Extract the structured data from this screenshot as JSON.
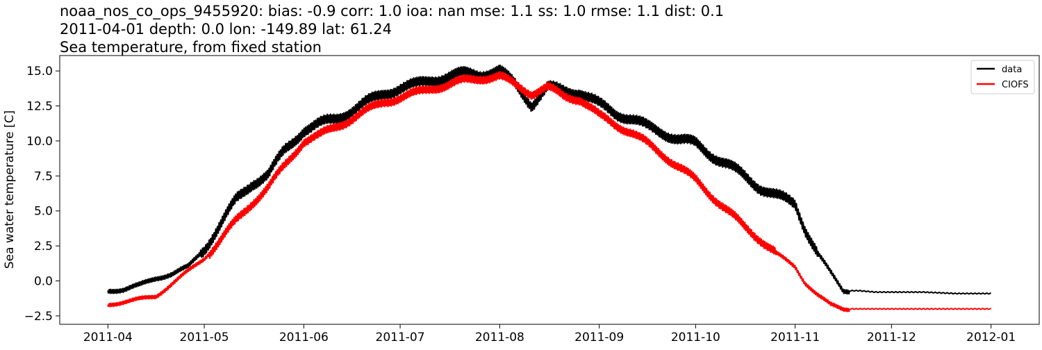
{
  "chart_data": {
    "type": "line",
    "title": [
      "noaa_nos_co_ops_9455920: bias: -0.9  corr: 1.0  ioa: nan  mse: 1.1  ss: 1.0  rmse: 1.1  dist: 0.1",
      "2011-04-01 depth: 0.0 lon: -149.89 lat: 61.24",
      "Sea temperature, from fixed station"
    ],
    "xlabel": "",
    "ylabel": "Sea water temperature [C]",
    "x_type": "date",
    "xlim": [
      "2011-03-17",
      "2012-01-16"
    ],
    "ylim": [
      -3.1,
      16.1
    ],
    "x_ticks": [
      "2011-04",
      "2011-05",
      "2011-06",
      "2011-07",
      "2011-08",
      "2011-09",
      "2011-10",
      "2011-11",
      "2011-12",
      "2012-01"
    ],
    "x_tick_dates": [
      "2011-04-01",
      "2011-05-01",
      "2011-06-01",
      "2011-07-01",
      "2011-08-01",
      "2011-09-01",
      "2011-10-01",
      "2011-11-01",
      "2011-12-01",
      "2012-01-01"
    ],
    "y_ticks": [
      "−2.5",
      "0.0",
      "2.5",
      "5.0",
      "7.5",
      "10.0",
      "12.5",
      "15.0"
    ],
    "y_tick_values": [
      -2.5,
      0.0,
      2.5,
      5.0,
      7.5,
      10.0,
      12.5,
      15.0
    ],
    "grid": false,
    "legend_position": "top-right",
    "series": [
      {
        "name": "data",
        "color": "#000000",
        "x": [
          "2011-04-01",
          "2011-04-06",
          "2011-04-11",
          "2011-04-16",
          "2011-04-21",
          "2011-04-26",
          "2011-05-01",
          "2011-05-06",
          "2011-05-11",
          "2011-05-16",
          "2011-05-21",
          "2011-05-26",
          "2011-06-01",
          "2011-06-06",
          "2011-06-11",
          "2011-06-16",
          "2011-06-21",
          "2011-06-26",
          "2011-07-01",
          "2011-07-06",
          "2011-07-11",
          "2011-07-16",
          "2011-07-21",
          "2011-07-26",
          "2011-08-01",
          "2011-08-06",
          "2011-08-11",
          "2011-08-16",
          "2011-08-21",
          "2011-08-26",
          "2011-09-01",
          "2011-09-06",
          "2011-09-11",
          "2011-09-16",
          "2011-09-21",
          "2011-09-26",
          "2011-10-01",
          "2011-10-06",
          "2011-10-11",
          "2011-10-16",
          "2011-10-21",
          "2011-10-26",
          "2011-11-01",
          "2011-11-04",
          "2011-11-08",
          "2011-11-12",
          "2011-11-16",
          "2011-11-21",
          "2011-11-26",
          "2011-12-01",
          "2011-12-11",
          "2011-12-21",
          "2012-01-01"
        ],
        "y": [
          -0.7,
          -0.6,
          -0.3,
          0.2,
          0.5,
          1.0,
          2.3,
          4.0,
          5.8,
          7.0,
          7.6,
          9.3,
          10.8,
          11.2,
          11.6,
          12.2,
          12.8,
          13.4,
          13.8,
          14.0,
          14.4,
          14.6,
          14.8,
          14.8,
          15.0,
          14.0,
          12.6,
          13.8,
          13.6,
          13.5,
          12.6,
          12.0,
          11.6,
          11.0,
          10.6,
          10.1,
          9.8,
          9.0,
          8.3,
          7.5,
          6.7,
          6.1,
          5.5,
          3.8,
          2.0,
          0.6,
          -0.7,
          -0.7,
          -0.8,
          -0.8,
          -0.8,
          -0.9,
          -0.9
        ]
      },
      {
        "name": "CIOFS",
        "color": "#ff0000",
        "x": [
          "2011-04-01",
          "2011-04-06",
          "2011-04-11",
          "2011-04-16",
          "2011-04-21",
          "2011-04-26",
          "2011-05-01",
          "2011-05-06",
          "2011-05-11",
          "2011-05-16",
          "2011-05-21",
          "2011-05-26",
          "2011-06-01",
          "2011-06-06",
          "2011-06-11",
          "2011-06-16",
          "2011-06-21",
          "2011-06-26",
          "2011-07-01",
          "2011-07-06",
          "2011-07-11",
          "2011-07-16",
          "2011-07-21",
          "2011-07-26",
          "2011-08-01",
          "2011-08-06",
          "2011-08-11",
          "2011-08-16",
          "2011-08-21",
          "2011-08-26",
          "2011-09-01",
          "2011-09-06",
          "2011-09-11",
          "2011-09-16",
          "2011-09-21",
          "2011-09-26",
          "2011-10-01",
          "2011-10-06",
          "2011-10-11",
          "2011-10-16",
          "2011-10-21",
          "2011-10-26",
          "2011-11-01",
          "2011-11-04",
          "2011-11-08",
          "2011-11-12",
          "2011-11-16",
          "2011-11-21",
          "2011-11-26",
          "2011-12-01",
          "2011-12-11",
          "2011-12-21",
          "2012-01-01"
        ],
        "y": [
          -1.7,
          -1.5,
          -1.3,
          -1.1,
          -0.2,
          0.7,
          1.6,
          2.9,
          4.3,
          5.6,
          6.7,
          8.2,
          10.0,
          10.4,
          11.0,
          11.6,
          12.2,
          12.8,
          13.1,
          13.4,
          13.8,
          14.0,
          14.3,
          14.5,
          14.6,
          14.0,
          13.4,
          13.8,
          13.2,
          13.0,
          11.8,
          11.2,
          10.6,
          9.8,
          9.0,
          8.1,
          7.2,
          6.1,
          5.0,
          3.9,
          3.0,
          2.0,
          1.0,
          -0.1,
          -1.0,
          -1.7,
          -2.0,
          -2.0,
          -2.0,
          -2.0,
          -2.0,
          -2.0,
          -2.0
        ]
      }
    ]
  }
}
